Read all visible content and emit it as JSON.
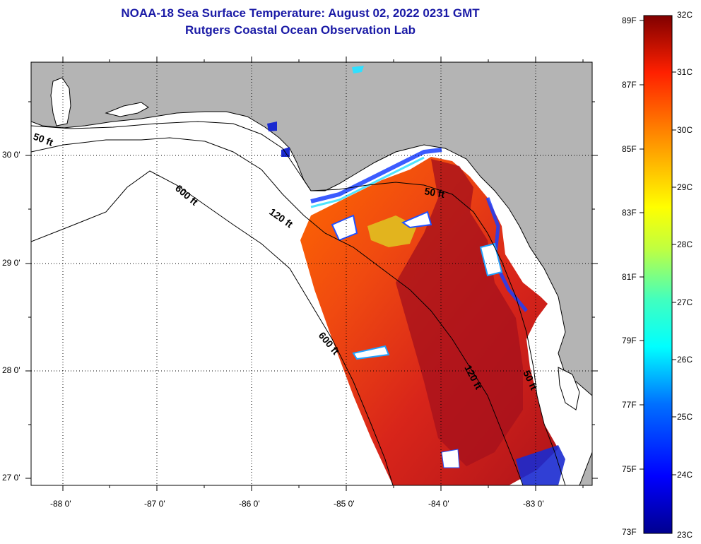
{
  "title": {
    "line1": "NOAA-18 Sea Surface Temperature:  August 02, 2022 0231 GMT",
    "line2": "Rutgers Coastal Ocean Observation Lab"
  },
  "axes": {
    "lat_labels": [
      "30 0'",
      "29 0'",
      "28 0'",
      "27 0'"
    ],
    "lon_labels": [
      "-88 0'",
      "-87 0'",
      "-86 0'",
      "-85 0'",
      "-84 0'",
      "-83 0'"
    ]
  },
  "contours": {
    "c50_a": "50 ft",
    "c50_b": "50 ft",
    "c50_c": "50 ft",
    "c120_a": "120 ft",
    "c120_b": "120 ft",
    "c600_a": "600 ft",
    "c600_b": "600 ft"
  },
  "colorbar": {
    "fahrenheit": [
      "89F",
      "87F",
      "85F",
      "83F",
      "81F",
      "79F",
      "77F",
      "75F",
      "73F"
    ],
    "celsius": [
      "32C",
      "31C",
      "30C",
      "29C",
      "28C",
      "27C",
      "26C",
      "25C",
      "24C",
      "23C"
    ]
  },
  "colors": {
    "title": "#1a1aa6",
    "land": "#b4b4b4",
    "water_nodata": "#ffffff"
  }
}
